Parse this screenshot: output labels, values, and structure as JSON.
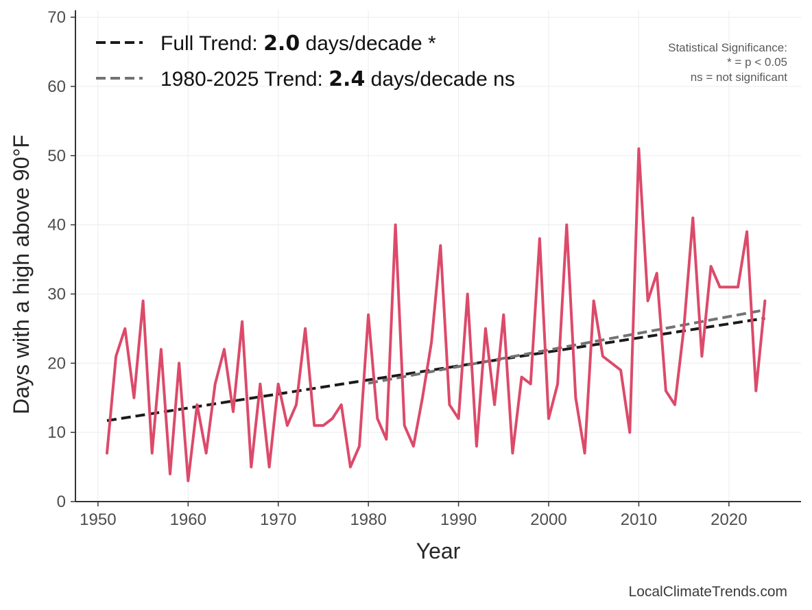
{
  "chart_data": {
    "type": "line",
    "xlabel": "Year",
    "ylabel": "Days with a high above 90°F",
    "xlim": [
      1947.5,
      2028
    ],
    "ylim": [
      0,
      71
    ],
    "xticks": [
      1950,
      1960,
      1970,
      1980,
      1990,
      2000,
      2010,
      2020
    ],
    "yticks": [
      0,
      10,
      20,
      30,
      40,
      50,
      60,
      70
    ],
    "grid": true,
    "legend_position": "top-left",
    "series": [
      {
        "name": "Days above 90°F",
        "color": "#dc4a6a",
        "x": [
          1951,
          1952,
          1953,
          1954,
          1955,
          1956,
          1957,
          1958,
          1959,
          1960,
          1961,
          1962,
          1963,
          1964,
          1965,
          1966,
          1967,
          1968,
          1969,
          1970,
          1971,
          1972,
          1973,
          1974,
          1975,
          1976,
          1977,
          1978,
          1979,
          1980,
          1981,
          1982,
          1983,
          1984,
          1985,
          1986,
          1987,
          1988,
          1989,
          1990,
          1991,
          1992,
          1993,
          1994,
          1995,
          1996,
          1997,
          1998,
          1999,
          2000,
          2001,
          2002,
          2003,
          2004,
          2005,
          2006,
          2007,
          2008,
          2009,
          2010,
          2011,
          2012,
          2013,
          2014,
          2015,
          2016,
          2017,
          2018,
          2019,
          2020,
          2021,
          2022,
          2023,
          2024
        ],
        "values": [
          7,
          21,
          25,
          15,
          29,
          7,
          22,
          4,
          20,
          3,
          14,
          7,
          17,
          22,
          13,
          26,
          5,
          17,
          5,
          17,
          11,
          14,
          25,
          11,
          11,
          12,
          14,
          5,
          8,
          27,
          12,
          9,
          40,
          11,
          8,
          15,
          23,
          37,
          14,
          12,
          30,
          8,
          25,
          14,
          27,
          7,
          18,
          17,
          38,
          12,
          17,
          40,
          15,
          7,
          29,
          21,
          20,
          19,
          10,
          51,
          29,
          33,
          16,
          14,
          25,
          41,
          21,
          34,
          31,
          31,
          31,
          39,
          16,
          29
        ]
      }
    ],
    "trends": [
      {
        "name": "Full Trend",
        "x": [
          1951,
          2024
        ],
        "values": [
          11.7,
          26.5
        ],
        "color": "#1a1a1a"
      },
      {
        "name": "1980-2025 Trend",
        "x": [
          1980,
          2024
        ],
        "values": [
          17.1,
          27.7
        ],
        "color": "#737373"
      }
    ],
    "legend": [
      {
        "prefix": "Full Trend: ",
        "value": "2.0",
        "suffix": " days/decade *",
        "color": "#1a1a1a"
      },
      {
        "prefix": "1980-2025 Trend: ",
        "value": "2.4",
        "suffix": " days/decade ns",
        "color": "#737373"
      }
    ],
    "significance_note": [
      "Statistical Significance:",
      "* = p < 0.05",
      "ns = not significant"
    ],
    "source": "LocalClimateTrends.com"
  }
}
